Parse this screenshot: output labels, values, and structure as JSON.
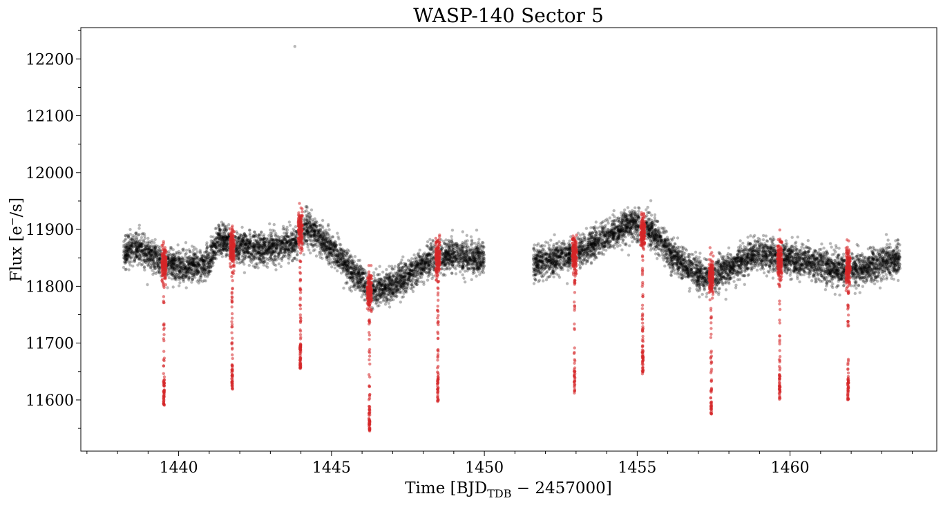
{
  "chart_data": {
    "type": "scatter",
    "title": "WASP-140 Sector 5",
    "xlabel": {
      "prefix": "Time [BJD",
      "sub": "TDB",
      "suffix": " − 2457000]"
    },
    "ylabel": {
      "prefix": "Flux [e",
      "sup": "−",
      "suffix": "/s]"
    },
    "xlim": [
      1436.8,
      1464.8
    ],
    "ylim": [
      11510,
      12255
    ],
    "xticks": [
      1440,
      1445,
      1450,
      1455,
      1460
    ],
    "xticklabels": [
      "1440",
      "1445",
      "1450",
      "1455",
      "1460"
    ],
    "yticks": [
      11600,
      11700,
      11800,
      11900,
      12000,
      12100,
      12200
    ],
    "yticklabels": [
      "11600",
      "11700",
      "11800",
      "11900",
      "12000",
      "12100",
      "12200"
    ],
    "grid": false,
    "series": [
      {
        "color": "#000000",
        "marker": "circle",
        "alpha": 0.28,
        "segments": [
          [
            1438.2,
            1450.0
          ],
          [
            1451.6,
            1463.6
          ]
        ],
        "trend_x": [
          1438.2,
          1438.6,
          1439.0,
          1439.5,
          1440.0,
          1440.5,
          1441.0,
          1441.3,
          1441.8,
          1442.5,
          1443.2,
          1443.9,
          1444.2,
          1444.6,
          1445.2,
          1445.8,
          1446.3,
          1446.8,
          1447.3,
          1447.8,
          1448.3,
          1448.8,
          1449.3,
          1450.0,
          1451.6,
          1452.2,
          1452.9,
          1453.6,
          1454.2,
          1454.8,
          1455.2,
          1455.6,
          1456.1,
          1456.6,
          1457.0,
          1457.5,
          1458.0,
          1458.5,
          1459.0,
          1459.6,
          1460.2,
          1460.8,
          1461.4,
          1462.0,
          1462.8,
          1463.6
        ],
        "trend_y": [
          11855,
          11870,
          11858,
          11840,
          11832,
          11835,
          11842,
          11885,
          11870,
          11866,
          11868,
          11878,
          11905,
          11885,
          11855,
          11820,
          11792,
          11798,
          11812,
          11830,
          11848,
          11856,
          11852,
          11850,
          11840,
          11848,
          11858,
          11875,
          11892,
          11912,
          11908,
          11890,
          11858,
          11835,
          11822,
          11818,
          11832,
          11846,
          11858,
          11855,
          11846,
          11840,
          11830,
          11828,
          11838,
          11848
        ],
        "scatter_sd": 14,
        "n_points": 10500,
        "outliers": [
          {
            "x": 1443.8,
            "y": 12222
          }
        ]
      },
      {
        "color": "#d62728",
        "marker": "circle",
        "alpha": 0.55,
        "transit_midtimes": [
          1439.52,
          1441.75,
          1443.98,
          1446.24,
          1448.48,
          1452.95,
          1455.18,
          1457.42,
          1459.66,
          1461.9
        ],
        "baseline_flux": [
          11840,
          11868,
          11900,
          11790,
          11852,
          11854,
          11896,
          11820,
          11846,
          11834
        ],
        "transit_depth_min": [
          11590,
          11618,
          11655,
          11545,
          11597,
          11612,
          11645,
          11575,
          11600,
          11600
        ],
        "points_per_transit": 230
      }
    ]
  }
}
